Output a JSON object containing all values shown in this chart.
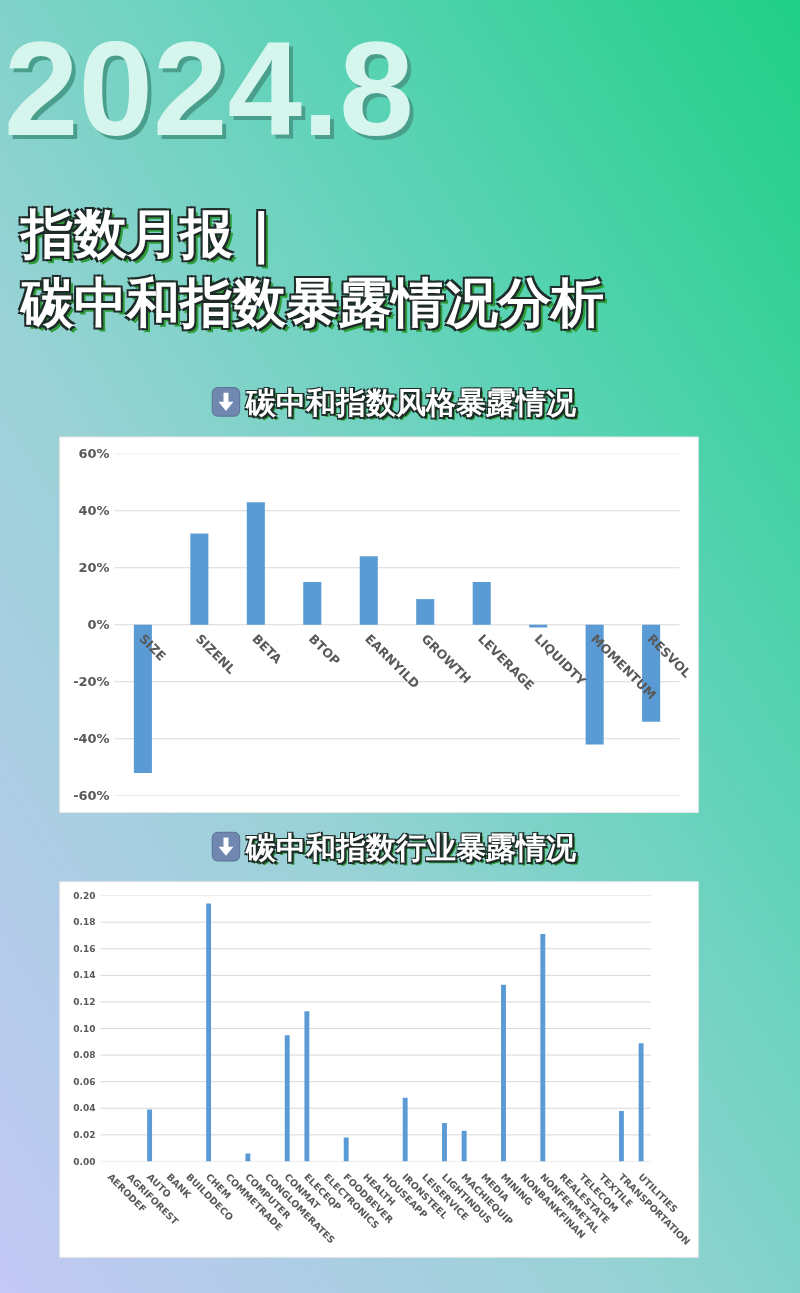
{
  "chart_data": [
    {
      "type": "other",
      "title": "指数月报 |\n碳中和指数暴露情况分析",
      "annotations": [
        "2024.8"
      ]
    },
    {
      "type": "bar",
      "title": "碳中和指数风格暴露情况",
      "categories": [
        "SIZE",
        "SIZENL",
        "BETA",
        "BTOP",
        "EARNYILD",
        "GROWTH",
        "LEVERAGE",
        "LIQUIDTY",
        "MOMENTUM",
        "RESVOL"
      ],
      "values": [
        -52,
        32,
        43,
        15,
        24,
        9,
        15,
        -1,
        -42,
        -34
      ],
      "color": "#5b9bd5",
      "ylim": [
        -60,
        60
      ],
      "yticks": [
        {
          "value": -60,
          "label": "-60%"
        },
        {
          "value": -40,
          "label": "-40%"
        },
        {
          "value": -20,
          "label": "-20%"
        },
        {
          "value": 0,
          "label": "0%"
        },
        {
          "value": 20,
          "label": "20%"
        },
        {
          "value": 40,
          "label": "40%"
        },
        {
          "value": 60,
          "label": "60%"
        }
      ],
      "grid": "y"
    },
    {
      "type": "bar",
      "title": "碳中和指数行业暴露情况",
      "categories": [
        "AERODEF",
        "AGRIFOREST",
        "AUTO",
        "BANK",
        "BUILDDECO",
        "CHEM",
        "COMMETRADE",
        "COMPUTER",
        "CONGLOMERATES",
        "CONMAT",
        "ELECEQP",
        "ELECTRONICS",
        "FOODBEVER",
        "HEALTH",
        "HOUSEAPP",
        "IRONSTEEL",
        "LEISERVICE",
        "LIGHTINDUS",
        "MACHIEQUIP",
        "MEDIA",
        "MINING",
        "NONBANKFINAN",
        "NONFERMETAL",
        "REALESTATE",
        "TELECOM",
        "TEXTILE",
        "TRANSPORTATION",
        "UTILITIES"
      ],
      "values": [
        0,
        0,
        0.039,
        0,
        0,
        0.194,
        0,
        0.006,
        0,
        0.095,
        0.113,
        0,
        0.018,
        0,
        0,
        0.048,
        0,
        0.029,
        0.023,
        0,
        0.133,
        0,
        0.171,
        0,
        0,
        0,
        0.038,
        0.089
      ],
      "color": "#5b9bd5",
      "ylim": [
        0,
        0.2
      ],
      "yticks": [
        {
          "value": 0,
          "label": "0.00"
        },
        {
          "value": 0.02,
          "label": "0.02"
        },
        {
          "value": 0.04,
          "label": "0.04"
        },
        {
          "value": 0.06,
          "label": "0.06"
        },
        {
          "value": 0.08,
          "label": "0.08"
        },
        {
          "value": 0.1,
          "label": "0.10"
        },
        {
          "value": 0.12,
          "label": "0.12"
        },
        {
          "value": 0.14,
          "label": "0.14"
        },
        {
          "value": 0.16,
          "label": "0.16"
        },
        {
          "value": 0.18,
          "label": "0.18"
        },
        {
          "value": 0.2,
          "label": "0.20"
        }
      ],
      "grid": "y"
    }
  ]
}
